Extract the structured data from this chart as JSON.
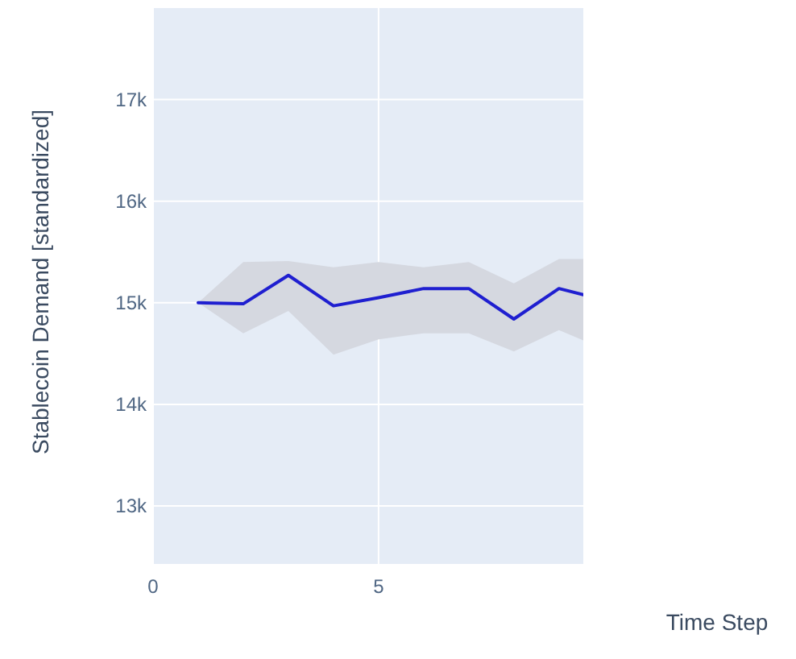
{
  "chart_data": {
    "type": "line",
    "xlabel": "Time Step",
    "ylabel": "Stablecoin Demand [standardized]",
    "x": [
      1,
      2,
      3,
      4,
      5,
      6,
      7,
      8,
      9,
      9.54
    ],
    "series": [
      {
        "color": "#1f1fd0",
        "values": [
          15000,
          14990,
          15270,
          14970,
          15050,
          15140,
          15140,
          14840,
          15140,
          15080
        ],
        "lower": [
          15000,
          14700,
          14920,
          14490,
          14640,
          14700,
          14700,
          14520,
          14730,
          14630
        ],
        "upper": [
          15000,
          15400,
          15410,
          15350,
          15400,
          15350,
          15400,
          15190,
          15430,
          15430
        ]
      }
    ],
    "xlim": [
      0,
      9.54
    ],
    "xticks": [
      0,
      5
    ],
    "ylim": [
      12430,
      17900
    ],
    "yticks": [
      {
        "value": 13000,
        "label": "13k"
      },
      {
        "value": 14000,
        "label": "14k"
      },
      {
        "value": 15000,
        "label": "15k"
      },
      {
        "value": 16000,
        "label": "16k"
      },
      {
        "value": 17000,
        "label": "17k"
      }
    ],
    "grid": true
  }
}
